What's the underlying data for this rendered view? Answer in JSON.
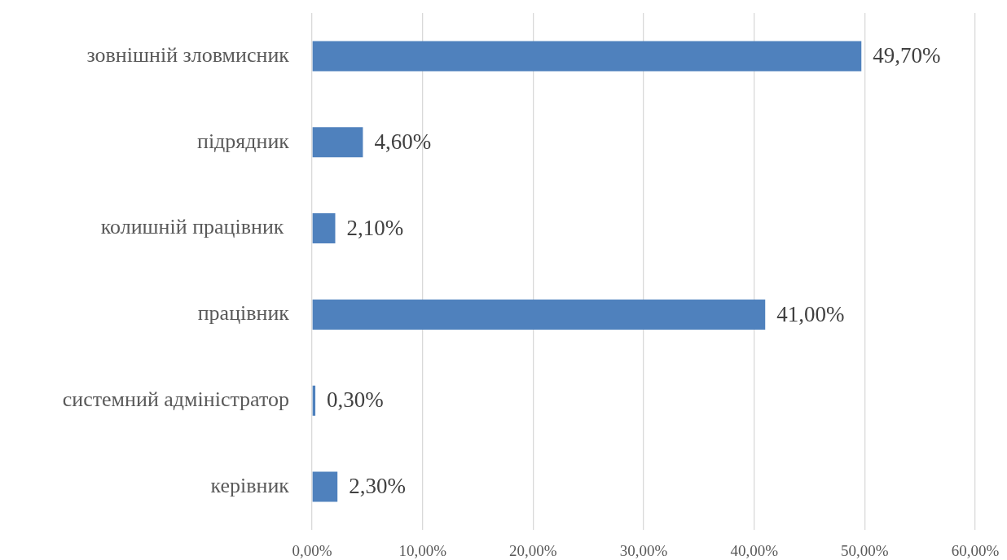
{
  "chart_data": {
    "type": "bar",
    "orientation": "horizontal",
    "categories": [
      "зовнішній зловмисник",
      "підрядник",
      "колишній працівник ",
      "працівник",
      "системний адміністратор",
      "керівник"
    ],
    "values": [
      49.7,
      4.6,
      2.1,
      41.0,
      0.3,
      2.3
    ],
    "value_labels": [
      "49,70%",
      "4,60%",
      "2,10%",
      "41,00%",
      "0,30%",
      "2,30%"
    ],
    "color": "#4f81bd",
    "xlim": [
      0,
      60
    ],
    "xticks": [
      {
        "value": 0,
        "label": "0,00%"
      },
      {
        "value": 10,
        "label": "10,00%"
      },
      {
        "value": 20,
        "label": "20,00%"
      },
      {
        "value": 30,
        "label": "30,00%"
      },
      {
        "value": 40,
        "label": "40,00%"
      },
      {
        "value": 50,
        "label": "50,00%"
      },
      {
        "value": 60,
        "label": "60,00%"
      }
    ],
    "grid": "x"
  }
}
